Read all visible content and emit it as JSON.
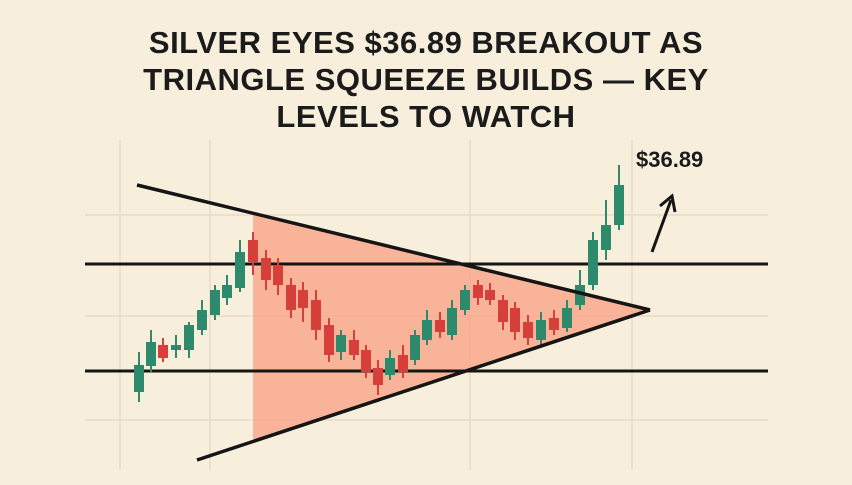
{
  "header": {
    "title": "SILVER EYES $36.89 BREAKOUT AS TRIANGLE SQUEEZE BUILDS — KEY LEVELS TO WATCH"
  },
  "annotation": {
    "label": "$36.89"
  }
}
